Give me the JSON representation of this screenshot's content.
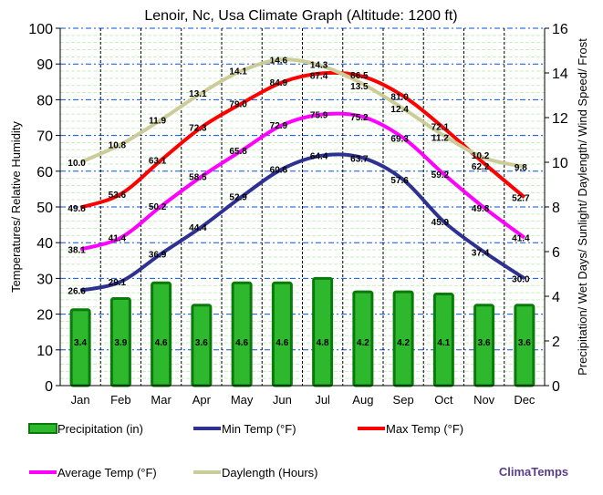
{
  "chart_data": {
    "type": "bar+line",
    "title": "Lenoir, Nc, Usa Climate Graph (Altitude: 1200 ft)",
    "ylabel_left": "Temperatures/ Relative Humidity",
    "ylabel_right": "Precipitation/ Wet Days/ Sunlight/ Daylength/ Wind Speed/ Frost",
    "ylim_left": [
      0,
      100
    ],
    "ylim_right": [
      0,
      16
    ],
    "yticks_left": [
      0,
      10,
      20,
      30,
      40,
      50,
      60,
      70,
      80,
      90,
      100
    ],
    "yticks_right": [
      0,
      2,
      4,
      6,
      8,
      10,
      12,
      14,
      16
    ],
    "categories": [
      "Jan",
      "Feb",
      "Mar",
      "Apr",
      "May",
      "Jun",
      "Jul",
      "Aug",
      "Sep",
      "Oct",
      "Nov",
      "Dec"
    ],
    "grid": true,
    "legend_placement": "bottom",
    "series": [
      {
        "name": "Precipitation (in)",
        "type": "bar",
        "axis": "right",
        "color": "#1e9e1e",
        "values": [
          3.4,
          3.9,
          4.6,
          3.6,
          4.6,
          4.6,
          4.8,
          4.2,
          4.2,
          4.1,
          3.6,
          3.6
        ]
      },
      {
        "name": "Min Temp (°F)",
        "type": "line",
        "axis": "left",
        "color": "#2e3192",
        "values": [
          26.6,
          29.1,
          36.9,
          44.4,
          52.9,
          60.6,
          64.4,
          63.7,
          57.6,
          45.9,
          37.4,
          30.0
        ]
      },
      {
        "name": "Max Temp (°F)",
        "type": "line",
        "axis": "left",
        "color": "#ff0000",
        "values": [
          49.8,
          53.6,
          63.1,
          72.3,
          79.0,
          84.9,
          87.4,
          86.5,
          81.0,
          72.1,
          62.2,
          52.7
        ]
      },
      {
        "name": "Average Temp (°F)",
        "type": "line",
        "axis": "left",
        "color": "#ff00ff",
        "values": [
          38.1,
          41.4,
          50.2,
          58.5,
          65.8,
          72.9,
          75.9,
          75.2,
          69.3,
          59.2,
          49.8,
          41.4
        ]
      },
      {
        "name": "Daylength (Hours)",
        "type": "line",
        "axis": "right",
        "color": "#cccc99",
        "values": [
          10.0,
          10.8,
          11.9,
          13.1,
          14.1,
          14.6,
          14.3,
          13.5,
          12.4,
          11.2,
          10.2,
          9.8
        ]
      }
    ]
  },
  "brand": "ClimaTemps"
}
